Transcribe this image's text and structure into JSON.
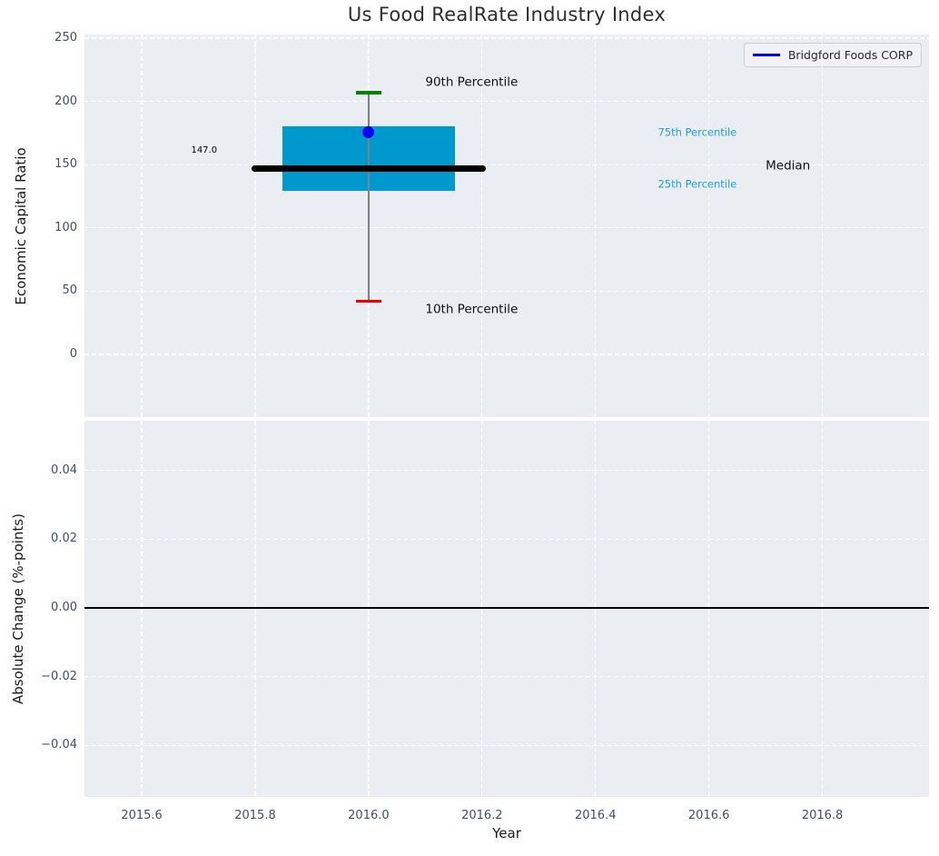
{
  "style": {
    "plot_bg": "#eaeef2",
    "grid_color": "#ffffff",
    "tick_color": "#3f4f63",
    "title_color": "#2e2e2e",
    "label_color": "#1a1a1a"
  },
  "chart_data": [
    {
      "type": "boxplot",
      "title": "Us Food RealRate Industry Index",
      "ylabel": "Economic Capital Ratio",
      "xlim": [
        2015.499,
        2016.988
      ],
      "ylim": [
        -49.6,
        252.9
      ],
      "grid": "white dashed, on",
      "xticks": [
        {
          "v": 2015.6,
          "label": "2015.6"
        },
        {
          "v": 2015.8,
          "label": "2015.8"
        },
        {
          "v": 2016.0,
          "label": "2016.0"
        },
        {
          "v": 2016.2,
          "label": "2016.2"
        },
        {
          "v": 2016.4,
          "label": "2016.4"
        },
        {
          "v": 2016.6,
          "label": "2016.6"
        },
        {
          "v": 2016.8,
          "label": "2016.8"
        }
      ],
      "show_xticklabels": false,
      "yticks": [
        {
          "v": 0,
          "label": "0"
        },
        {
          "v": 50,
          "label": "50"
        },
        {
          "v": 100,
          "label": "100"
        },
        {
          "v": 150,
          "label": "150"
        },
        {
          "v": 200,
          "label": "200"
        },
        {
          "v": 250,
          "label": "250"
        }
      ],
      "box": {
        "x": 2016.0,
        "p90": 207,
        "p75": 180,
        "median": 147,
        "p25": 129,
        "p10": 42,
        "box_halfwidth": 0.152,
        "median_halfwidth": 0.2,
        "cap_halfwidth": 0.023,
        "colors": {
          "box": "#0099cd",
          "median": "#000000",
          "whisker": "#808080",
          "cap_90": "#068006",
          "cap_10": "#ee0000"
        }
      },
      "company_point": {
        "label": "Bridgford Foods CORP",
        "x": 2016.0,
        "y": 176,
        "color": "#0000ff"
      },
      "annotations": [
        {
          "text": "147.0",
          "x": 2015.71,
          "y": 161,
          "color": "#000000",
          "size": 10,
          "align": "center"
        },
        {
          "text": "90th Percentile",
          "x": 2016.1,
          "y": 215,
          "color": "#111111",
          "size": 13.5,
          "align": "left"
        },
        {
          "text": "10th Percentile",
          "x": 2016.1,
          "y": 35,
          "color": "#111111",
          "size": 13.5,
          "align": "left"
        },
        {
          "text": "75th Percentile",
          "x": 2016.51,
          "y": 175,
          "color": "#1d9fd4",
          "size": 11.5,
          "align": "left"
        },
        {
          "text": "Median",
          "x": 2016.7,
          "y": 149,
          "color": "#111111",
          "size": 13.5,
          "align": "left"
        },
        {
          "text": "25th Percentile",
          "x": 2016.51,
          "y": 134,
          "color": "#1d9fd4",
          "size": 11.5,
          "align": "left"
        }
      ],
      "legend": {
        "label": "Bridgford Foods CORP",
        "line_color": "#0000ff",
        "position": "upper right"
      }
    },
    {
      "type": "line",
      "ylabel": "Absolute Change (%-points)",
      "xlabel": "Year",
      "xlim": [
        2015.499,
        2016.988
      ],
      "ylim": [
        -0.055,
        0.0545
      ],
      "grid": "white dashed, on",
      "xticks": [
        {
          "v": 2015.6,
          "label": "2015.6"
        },
        {
          "v": 2015.8,
          "label": "2015.8"
        },
        {
          "v": 2016.0,
          "label": "2016.0"
        },
        {
          "v": 2016.2,
          "label": "2016.2"
        },
        {
          "v": 2016.4,
          "label": "2016.4"
        },
        {
          "v": 2016.6,
          "label": "2016.6"
        },
        {
          "v": 2016.8,
          "label": "2016.8"
        }
      ],
      "show_xticklabels": true,
      "yticks": [
        {
          "v": -0.04,
          "label": "−0.04"
        },
        {
          "v": -0.02,
          "label": "−0.02"
        },
        {
          "v": 0,
          "label": "0.00"
        },
        {
          "v": 0.02,
          "label": "0.02"
        },
        {
          "v": 0.04,
          "label": "0.04"
        }
      ],
      "zero_line": {
        "y": 0.0,
        "color": "#000000"
      },
      "series": []
    }
  ]
}
